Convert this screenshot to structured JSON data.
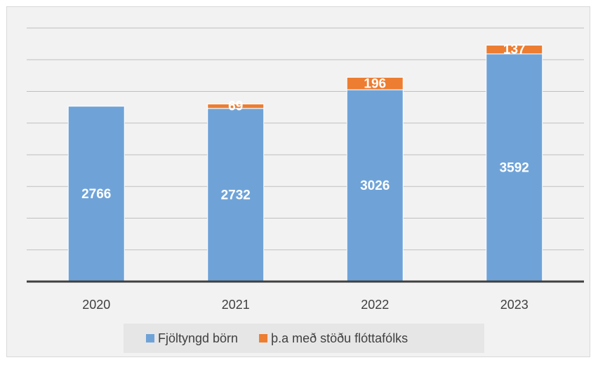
{
  "chart_data": {
    "type": "stacked_bar",
    "categories": [
      "2020",
      "2021",
      "2022",
      "2023"
    ],
    "series": [
      {
        "name": "Fjöltyngd börn",
        "color": "#6fa3d8",
        "values": [
          2766,
          2732,
          3026,
          3592
        ]
      },
      {
        "name": "þ.a með stöðu flóttafólks",
        "color": "#ed7d31",
        "values": [
          null,
          69,
          196,
          137
        ]
      }
    ],
    "ylim": [
      0,
      4000
    ],
    "yticks": [
      0,
      500,
      1000,
      1500,
      2000,
      2500,
      3000,
      3500,
      4000
    ],
    "grid": true,
    "legend": "bottom"
  }
}
